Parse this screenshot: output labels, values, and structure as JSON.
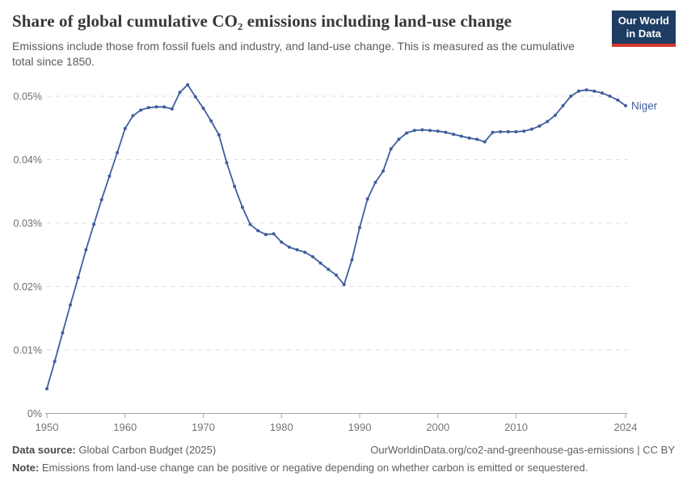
{
  "header": {
    "title": "Share of global cumulative CO₂ emissions including land-use change",
    "subtitle": "Emissions include those from fossil fuels and industry, and land-use change. This is measured as the cumulative total since 1850.",
    "logo_line1": "Our World",
    "logo_line2": "in Data"
  },
  "chart_data": {
    "type": "line",
    "title": "Share of global cumulative CO₂ emissions including land-use change",
    "unit": "%",
    "grid": "horizontal-dashed",
    "legend_position": "end-of-line",
    "xlim": [
      1950,
      2024
    ],
    "ylim": [
      0,
      0.052
    ],
    "x_ticks": [
      1950,
      1960,
      1970,
      1980,
      1990,
      2000,
      2010,
      2024
    ],
    "y_ticks": [
      0,
      0.01,
      0.02,
      0.03,
      0.04,
      0.05
    ],
    "y_tick_labels": [
      "0%",
      "0.01%",
      "0.02%",
      "0.03%",
      "0.04%",
      "0.05%"
    ],
    "series": [
      {
        "name": "Niger",
        "color": "#3f5e9e",
        "x": [
          1950,
          1951,
          1952,
          1953,
          1954,
          1955,
          1956,
          1957,
          1958,
          1959,
          1960,
          1961,
          1962,
          1963,
          1964,
          1965,
          1966,
          1967,
          1968,
          1969,
          1970,
          1971,
          1972,
          1973,
          1974,
          1975,
          1976,
          1977,
          1978,
          1979,
          1980,
          1981,
          1982,
          1983,
          1984,
          1985,
          1986,
          1987,
          1988,
          1989,
          1990,
          1991,
          1992,
          1993,
          1994,
          1995,
          1996,
          1997,
          1998,
          1999,
          2000,
          2001,
          2002,
          2003,
          2004,
          2005,
          2006,
          2007,
          2008,
          2009,
          2010,
          2011,
          2012,
          2013,
          2014,
          2015,
          2016,
          2017,
          2018,
          2019,
          2020,
          2021,
          2022,
          2023,
          2024
        ],
        "values": [
          0.0039,
          0.0082,
          0.0127,
          0.0171,
          0.0214,
          0.0258,
          0.0298,
          0.0337,
          0.0374,
          0.0411,
          0.0449,
          0.0469,
          0.0478,
          0.0482,
          0.0483,
          0.0483,
          0.048,
          0.0506,
          0.0518,
          0.0499,
          0.0481,
          0.0461,
          0.0439,
          0.0395,
          0.0358,
          0.0325,
          0.0298,
          0.0288,
          0.0282,
          0.0283,
          0.027,
          0.0262,
          0.0258,
          0.0254,
          0.0247,
          0.0237,
          0.0227,
          0.0218,
          0.0203,
          0.0242,
          0.0293,
          0.0338,
          0.0364,
          0.0382,
          0.0417,
          0.0432,
          0.0442,
          0.0446,
          0.0447,
          0.0446,
          0.0445,
          0.0443,
          0.044,
          0.0437,
          0.0434,
          0.0432,
          0.0428,
          0.0443,
          0.0444,
          0.0444,
          0.0444,
          0.0445,
          0.0448,
          0.0453,
          0.046,
          0.047,
          0.0485,
          0.05,
          0.0508,
          0.051,
          0.0508,
          0.0505,
          0.05,
          0.0494,
          0.0485
        ]
      }
    ]
  },
  "footer": {
    "data_source_label": "Data source:",
    "data_source_value": " Global Carbon Budget (2025)",
    "link": "OurWorldinData.org/co2-and-greenhouse-gas-emissions | CC BY",
    "note_label": "Note:",
    "note_value": " Emissions from land-use change can be positive or negative depending on whether carbon is emitted or sequestered."
  }
}
